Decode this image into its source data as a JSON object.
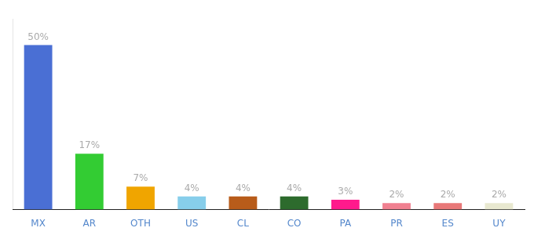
{
  "chart_data": {
    "type": "bar",
    "categories": [
      "MX",
      "AR",
      "OTH",
      "US",
      "CL",
      "CO",
      "PA",
      "PR",
      "ES",
      "UY"
    ],
    "values": [
      50,
      17,
      7,
      4,
      4,
      4,
      3,
      2,
      2,
      2
    ],
    "value_labels": [
      "50%",
      "17%",
      "7%",
      "4%",
      "4%",
      "4%",
      "3%",
      "2%",
      "2%",
      "2%"
    ],
    "colors": [
      "#4a6fd4",
      "#33cc33",
      "#f0a500",
      "#87ceeb",
      "#b85c1a",
      "#2d6b2d",
      "#ff1a8c",
      "#f08090",
      "#e87878",
      "#e8e8d0"
    ],
    "ylim": [
      0,
      58
    ],
    "grid": false,
    "data_labels": true,
    "tick_labels": "x"
  }
}
